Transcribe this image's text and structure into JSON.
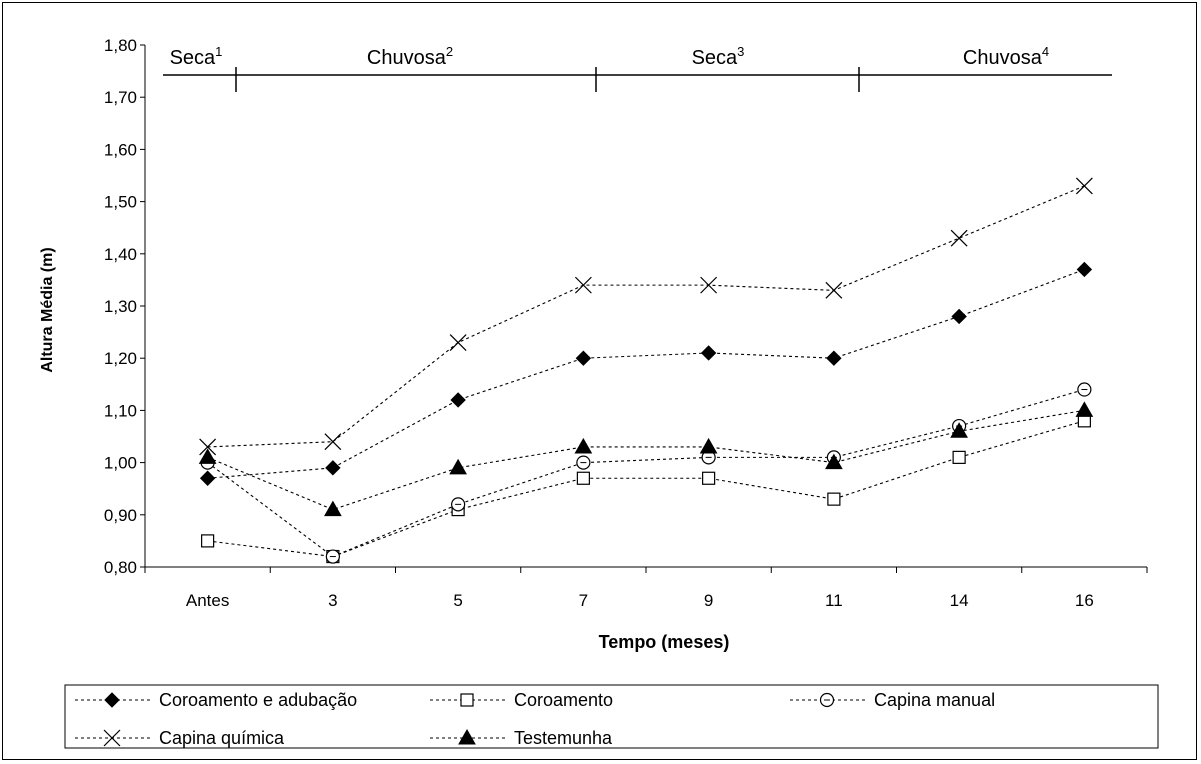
{
  "chart_data": {
    "type": "line",
    "categories": [
      "Antes",
      "3",
      "5",
      "7",
      "9",
      "11",
      "14",
      "16"
    ],
    "xlabel": "Tempo (meses)",
    "ylabel": "Altura Média (m)",
    "ylim": [
      0.8,
      1.8
    ],
    "yticks": [
      "0,80",
      "0,90",
      "1,00",
      "1,10",
      "1,20",
      "1,30",
      "1,40",
      "1,50",
      "1,60",
      "1,70",
      "1,80"
    ],
    "grid": false,
    "legend_position": "bottom",
    "line_style": "dotted",
    "periods": [
      {
        "label": "Seca",
        "sup": "1"
      },
      {
        "label": "Chuvosa",
        "sup": "2"
      },
      {
        "label": "Seca",
        "sup": "3"
      },
      {
        "label": "Chuvosa",
        "sup": "4"
      }
    ],
    "series": [
      {
        "name": "Coroamento e adubação",
        "marker": "diamond",
        "values": [
          0.97,
          0.99,
          1.12,
          1.2,
          1.21,
          1.2,
          1.28,
          1.37
        ]
      },
      {
        "name": "Coroamento",
        "marker": "square-open",
        "values": [
          0.85,
          0.82,
          0.91,
          0.97,
          0.97,
          0.93,
          1.01,
          1.08
        ]
      },
      {
        "name": "Capina manual",
        "marker": "circle-open",
        "values": [
          1.0,
          0.82,
          0.92,
          1.0,
          1.01,
          1.01,
          1.07,
          1.14
        ]
      },
      {
        "name": "Capina química",
        "marker": "x",
        "values": [
          1.03,
          1.04,
          1.23,
          1.34,
          1.34,
          1.33,
          1.43,
          1.53
        ]
      },
      {
        "name": "Testemunha",
        "marker": "triangle",
        "values": [
          1.01,
          0.91,
          0.99,
          1.03,
          1.03,
          1.0,
          1.06,
          1.1
        ]
      }
    ]
  }
}
